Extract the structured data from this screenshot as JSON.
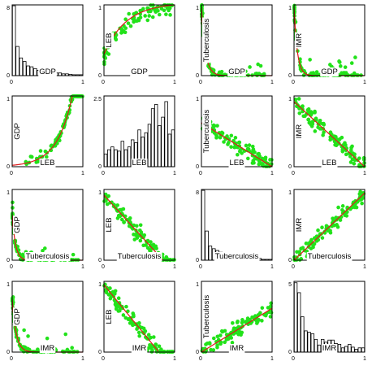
{
  "chart_data": {
    "type": "scatter-matrix",
    "variables": [
      "GDP",
      "LEB",
      "Tuberculosis",
      "IMR"
    ],
    "colors": {
      "points": "#22e21a",
      "fit": "#dd1a1a",
      "bars": "#000000"
    },
    "panels": [
      {
        "row": 0,
        "col": 0,
        "type": "histogram",
        "xlabel": "GDP",
        "ylabel": "",
        "ylim": [
          0,
          8
        ],
        "yticks": [
          0,
          8
        ],
        "xticks": [
          0,
          1
        ],
        "values": [
          7.9,
          3.3,
          2.0,
          1.6,
          1.1,
          1.0,
          0.8,
          0.6,
          0.5,
          0.6,
          0.4,
          0.4,
          0.3,
          0.3,
          0.2,
          0.2,
          0.15,
          0.1,
          0.1,
          0.1
        ]
      },
      {
        "row": 0,
        "col": 1,
        "type": "scatter",
        "xlabel": "GDP",
        "ylabel": "LEB",
        "yticks": [
          0,
          1
        ],
        "xticks": [
          0,
          1
        ],
        "trend": "concave",
        "fit": [
          0.3,
          3.2
        ]
      },
      {
        "row": 0,
        "col": 2,
        "type": "scatter",
        "xlabel": "GDP",
        "ylabel": "Tuberculosis",
        "yticks": [
          0,
          1
        ],
        "xticks": [
          0,
          1
        ],
        "trend": "decay",
        "fit": [
          0.97,
          18
        ]
      },
      {
        "row": 0,
        "col": 3,
        "type": "scatter",
        "xlabel": "GDP",
        "ylabel": "IMR",
        "yticks": [
          0,
          1
        ],
        "xticks": [
          0,
          1
        ],
        "trend": "decay",
        "fit": [
          0.97,
          22
        ]
      },
      {
        "row": 1,
        "col": 0,
        "type": "scatter",
        "xlabel": "LEB",
        "ylabel": "GDP",
        "yticks": [
          0,
          1
        ],
        "xticks": [
          0,
          1
        ],
        "trend": "exp",
        "fit": [
          0.02,
          4.6
        ]
      },
      {
        "row": 1,
        "col": 1,
        "type": "histogram",
        "xlabel": "LEB",
        "ylabel": "",
        "ylim": [
          0,
          2.5
        ],
        "yticks": [
          0,
          2.5
        ],
        "xticks": [
          0,
          1
        ],
        "values": [
          0.45,
          0.6,
          0.7,
          0.6,
          0.55,
          0.9,
          0.6,
          0.7,
          0.95,
          0.85,
          1.3,
          1.05,
          1.2,
          1.5,
          2.05,
          2.2,
          1.45,
          1.75,
          2.3,
          1.15,
          1.3
        ]
      },
      {
        "row": 1,
        "col": 2,
        "type": "scatter",
        "xlabel": "LEB",
        "ylabel": "Tuberculosis",
        "yticks": [
          0,
          1
        ],
        "xticks": [
          0,
          1
        ],
        "trend": "linear",
        "fit": [
          0.62,
          -0.62
        ]
      },
      {
        "row": 1,
        "col": 3,
        "type": "scatter",
        "xlabel": "LEB",
        "ylabel": "IMR",
        "yticks": [
          0,
          1
        ],
        "xticks": [
          0,
          1
        ],
        "trend": "linear",
        "fit": [
          0.92,
          -0.92
        ]
      },
      {
        "row": 2,
        "col": 0,
        "type": "scatter",
        "xlabel": "Tuberculosis",
        "ylabel": "GDP",
        "yticks": [
          0,
          1
        ],
        "xticks": [
          0,
          1
        ],
        "trend": "decay",
        "fit": [
          0.65,
          22
        ]
      },
      {
        "row": 2,
        "col": 1,
        "type": "scatter",
        "xlabel": "Tuberculosis",
        "ylabel": "LEB",
        "yticks": [
          0,
          1
        ],
        "xticks": [
          0,
          1
        ],
        "trend": "linear",
        "fit": [
          0.92,
          -1.1
        ]
      },
      {
        "row": 2,
        "col": 2,
        "type": "histogram",
        "xlabel": "Tuberculosis",
        "ylabel": "",
        "ylim": [
          0,
          8
        ],
        "yticks": [
          0,
          8
        ],
        "xticks": [
          0,
          1
        ],
        "values": [
          7.9,
          3.3,
          1.6,
          1.3,
          1.1,
          0.9,
          0.7,
          0.55,
          0.6,
          0.5,
          0.4,
          0.4,
          0.3,
          0.3,
          0.3,
          0.2,
          0.2,
          0.1,
          0.1,
          0.1
        ]
      },
      {
        "row": 2,
        "col": 3,
        "type": "scatter",
        "xlabel": "Tuberculosis",
        "ylabel": "IMR",
        "yticks": [
          0,
          1
        ],
        "xticks": [
          0,
          1
        ],
        "trend": "linear",
        "fit": [
          0.0,
          0.95
        ]
      },
      {
        "row": 3,
        "col": 0,
        "type": "scatter",
        "xlabel": "IMR",
        "ylabel": "GDP",
        "yticks": [
          0,
          1
        ],
        "xticks": [
          0,
          1
        ],
        "trend": "decay",
        "fit": [
          0.75,
          18
        ]
      },
      {
        "row": 3,
        "col": 1,
        "type": "scatter",
        "xlabel": "IMR",
        "ylabel": "LEB",
        "yticks": [
          0,
          1
        ],
        "xticks": [
          0,
          1
        ],
        "trend": "linear",
        "fit": [
          0.95,
          -1.22
        ]
      },
      {
        "row": 3,
        "col": 2,
        "type": "scatter",
        "xlabel": "IMR",
        "ylabel": "Tuberculosis",
        "yticks": [
          0,
          1
        ],
        "xticks": [
          0,
          1
        ],
        "trend": "linear",
        "fit": [
          0.0,
          0.62
        ]
      },
      {
        "row": 3,
        "col": 3,
        "type": "histogram",
        "xlabel": "IMR",
        "ylabel": "",
        "ylim": [
          0,
          5
        ],
        "yticks": [
          0,
          5
        ],
        "xticks": [
          0,
          1
        ],
        "values": [
          4.9,
          4.2,
          2.5,
          1.5,
          1.4,
          1.3,
          0.9,
          0.5,
          0.9,
          0.7,
          0.85,
          0.85,
          0.6,
          0.55,
          0.3,
          0.4,
          0.55,
          0.35,
          0.2,
          0.3,
          0.3
        ]
      }
    ]
  }
}
